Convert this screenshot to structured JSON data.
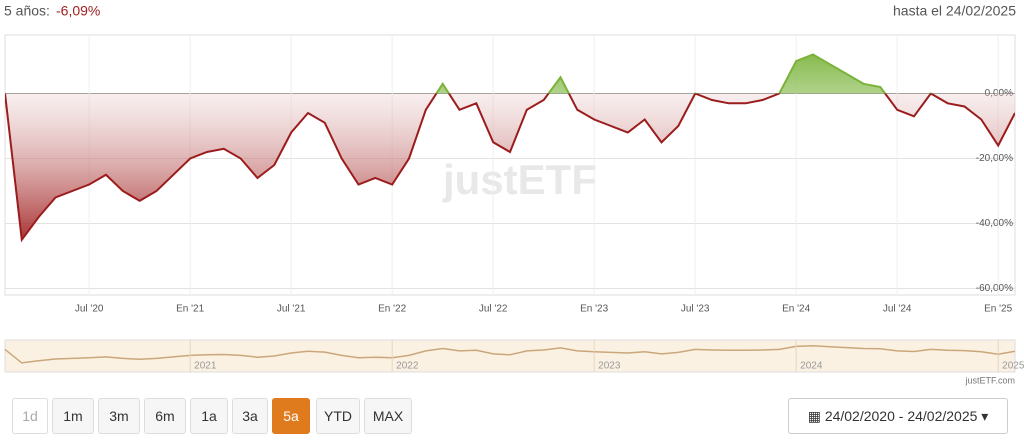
{
  "header": {
    "period": "5 años:",
    "performance": "-6,09%",
    "until": "hasta el 24/02/2025"
  },
  "chart_data": {
    "type": "line",
    "x": [
      "2020-02",
      "2020-03",
      "2020-04",
      "2020-05",
      "2020-06",
      "2020-07",
      "2020-08",
      "2020-09",
      "2020-10",
      "2020-11",
      "2020-12",
      "2021-01",
      "2021-02",
      "2021-03",
      "2021-04",
      "2021-05",
      "2021-06",
      "2021-07",
      "2021-08",
      "2021-09",
      "2021-10",
      "2021-11",
      "2021-12",
      "2022-01",
      "2022-02",
      "2022-03",
      "2022-04",
      "2022-05",
      "2022-06",
      "2022-07",
      "2022-08",
      "2022-09",
      "2022-10",
      "2022-11",
      "2022-12",
      "2023-01",
      "2023-02",
      "2023-03",
      "2023-04",
      "2023-05",
      "2023-06",
      "2023-07",
      "2023-08",
      "2023-09",
      "2023-10",
      "2023-11",
      "2023-12",
      "2024-01",
      "2024-02",
      "2024-03",
      "2024-04",
      "2024-05",
      "2024-06",
      "2024-07",
      "2024-08",
      "2024-09",
      "2024-10",
      "2024-11",
      "2024-12",
      "2025-01",
      "2025-02"
    ],
    "series": [
      {
        "name": "justETF",
        "color": "#9b1c1c",
        "values": [
          0,
          -45,
          -38,
          -32,
          -30,
          -28,
          -25,
          -30,
          -33,
          -30,
          -25,
          -20,
          -18,
          -17,
          -20,
          -26,
          -22,
          -12,
          -6,
          -9,
          -20,
          -28,
          -26,
          -28,
          -20,
          -5,
          3,
          -5,
          -3,
          -15,
          -18,
          -5,
          -2,
          5,
          -5,
          -8,
          -10,
          -12,
          -8,
          -15,
          -10,
          0,
          -2,
          -3,
          -3,
          -2,
          0,
          10,
          12,
          9,
          6,
          3,
          2,
          -5,
          -7,
          0,
          -3,
          -4,
          -8,
          -16,
          -6
        ]
      }
    ],
    "positive_color": "#7ab33a",
    "negative_color": "#9b1c1c",
    "xlim": [
      "2020-02",
      "2025-02"
    ],
    "xticks": [
      {
        "value": "2020-07",
        "label": "Jul '20"
      },
      {
        "value": "2021-01",
        "label": "En '21"
      },
      {
        "value": "2021-07",
        "label": "Jul '21"
      },
      {
        "value": "2022-01",
        "label": "En '22"
      },
      {
        "value": "2022-07",
        "label": "Jul '22"
      },
      {
        "value": "2023-01",
        "label": "En '23"
      },
      {
        "value": "2023-07",
        "label": "Jul '23"
      },
      {
        "value": "2024-01",
        "label": "En '24"
      },
      {
        "value": "2024-07",
        "label": "Jul '24"
      },
      {
        "value": "2025-01",
        "label": "En '25"
      }
    ],
    "ylim": [
      -62,
      18
    ],
    "yticks": [
      {
        "value": 0,
        "label": "0,00%"
      },
      {
        "value": -20,
        "label": "-20,00%"
      },
      {
        "value": -40,
        "label": "-40,00%"
      },
      {
        "value": -60,
        "label": "-60,00%"
      }
    ],
    "grid": true
  },
  "watermark": "justETF",
  "navigator": {
    "labels": [
      {
        "value": "2021-01",
        "label": "2021"
      },
      {
        "value": "2022-01",
        "label": "2022"
      },
      {
        "value": "2023-01",
        "label": "2023"
      },
      {
        "value": "2024-01",
        "label": "2024"
      },
      {
        "value": "2025-01",
        "label": "2025"
      }
    ],
    "credit": "justETF.com"
  },
  "buttons": [
    {
      "label": "1d",
      "state": "disabled"
    },
    {
      "label": "1m",
      "state": "normal"
    },
    {
      "label": "3m",
      "state": "normal"
    },
    {
      "label": "6m",
      "state": "normal"
    },
    {
      "label": "1a",
      "state": "normal"
    },
    {
      "label": "3a",
      "state": "normal"
    },
    {
      "label": "5a",
      "state": "active"
    },
    {
      "label": "YTD",
      "state": "normal"
    },
    {
      "label": "MAX",
      "state": "normal"
    }
  ],
  "date_range": "24/02/2020 - 24/02/2025"
}
